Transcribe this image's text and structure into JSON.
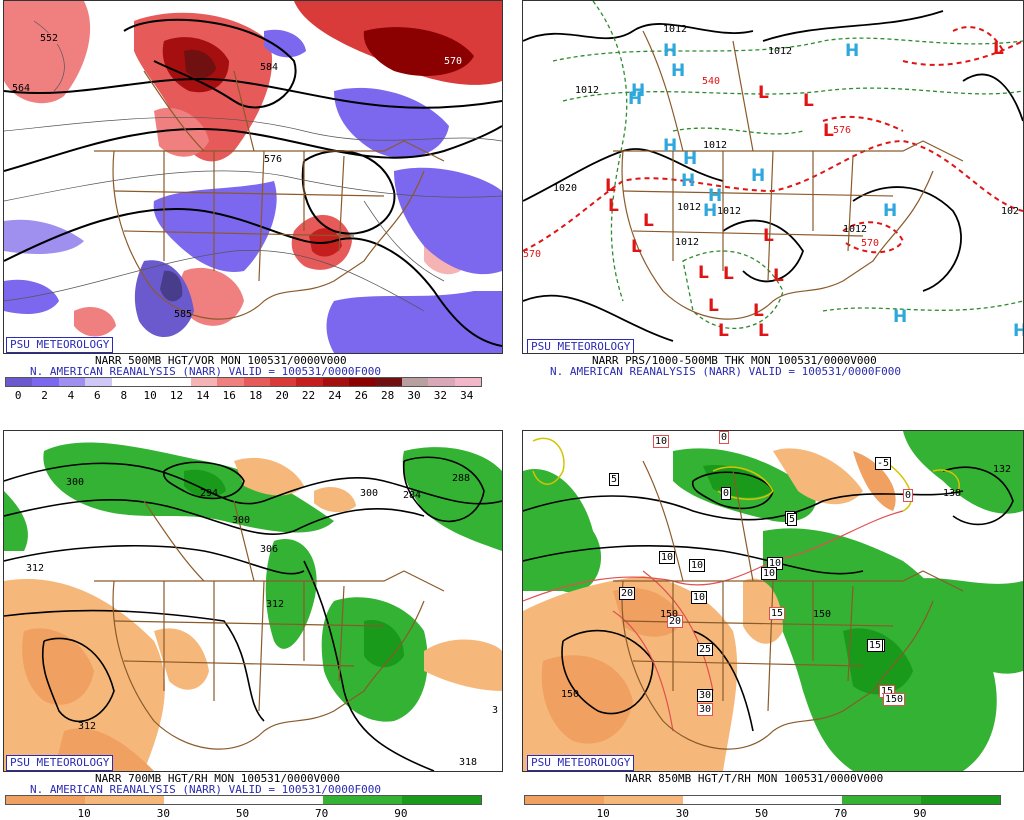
{
  "badge": "PSU METEOROLOGY",
  "reanalysis_line": "N. AMERICAN REANALYSIS (NARR) VALID = 100531/0000F000",
  "panels": [
    {
      "id": "p500",
      "caption": "NARR 500MB HGT/VOR MON 100531/0000V000",
      "scale_labels": [
        "0",
        "2",
        "4",
        "6",
        "8",
        "10",
        "12",
        "14",
        "16",
        "18",
        "20",
        "22",
        "24",
        "26",
        "28",
        "30",
        "32",
        "34"
      ],
      "scale_colors": [
        "#6a5acd",
        "#7b68ee",
        "#9f8fef",
        "#cfc7f5",
        "#ffffff",
        "#ffffff",
        "#ffffff",
        "#f6b3b3",
        "#f08080",
        "#e65a5a",
        "#d93a3a",
        "#c41e1e",
        "#a50f0f",
        "#8b0000",
        "#701010",
        "#b8a0a0",
        "#d8a8b8",
        "#f3b6c8"
      ],
      "contour_labels": [
        "552",
        "564",
        "584",
        "576",
        "585",
        "570"
      ],
      "colors": {
        "vor_high": "#d93a3a",
        "vor_low": "#7b68ee"
      }
    },
    {
      "id": "pprs",
      "caption": "NARR PRS/1000-500MB THK MON 100531/0000V000",
      "isobar_labels": [
        "1012",
        "1012",
        "1012",
        "1012",
        "1020",
        "1012",
        "1012",
        "1012",
        "1012",
        "102"
      ],
      "thickness_labels": [
        "540",
        "576",
        "570",
        "570"
      ],
      "colors": {
        "high": "#2ea8dc",
        "low": "#e01414",
        "thk_warm": "#e01414",
        "thk_cold": "#2e8b2e"
      }
    },
    {
      "id": "p700",
      "caption": "NARR 700MB HGT/RH MON 100531/0000V000",
      "scale_labels": [
        "10",
        "30",
        "50",
        "70",
        "90"
      ],
      "scale_colors": [
        "#f0a060",
        "#f5b87a",
        "#ffffff",
        "#ffffff",
        "#33b233",
        "#1a9a1a"
      ],
      "contour_labels": [
        "300",
        "294",
        "300",
        "284",
        "300",
        "306",
        "312",
        "312",
        "312",
        "288",
        "318",
        "3"
      ],
      "colors": {
        "moist": "#33b233",
        "dry": "#f0a060"
      }
    },
    {
      "id": "p850",
      "caption": "NARR 850MB HGT/T/RH MON 100531/0000V000",
      "scale_labels": [
        "10",
        "30",
        "50",
        "70",
        "90"
      ],
      "scale_colors": [
        "#f0a060",
        "#f5b87a",
        "#ffffff",
        "#ffffff",
        "#33b233",
        "#1a9a1a"
      ],
      "contour_labels": [
        "150",
        "150",
        "150",
        "132",
        "138"
      ],
      "temp_labels": [
        "10",
        "10",
        "10",
        "0",
        "5",
        "-5",
        "0",
        "0",
        "5",
        "15",
        "15",
        "15",
        "15",
        "15",
        "20",
        "20",
        "25",
        "30",
        "30",
        "10",
        "10",
        "150",
        "5",
        "10"
      ],
      "colors": {
        "moist": "#33b233",
        "dry": "#f0a060",
        "temp": "#e05050"
      }
    }
  ]
}
